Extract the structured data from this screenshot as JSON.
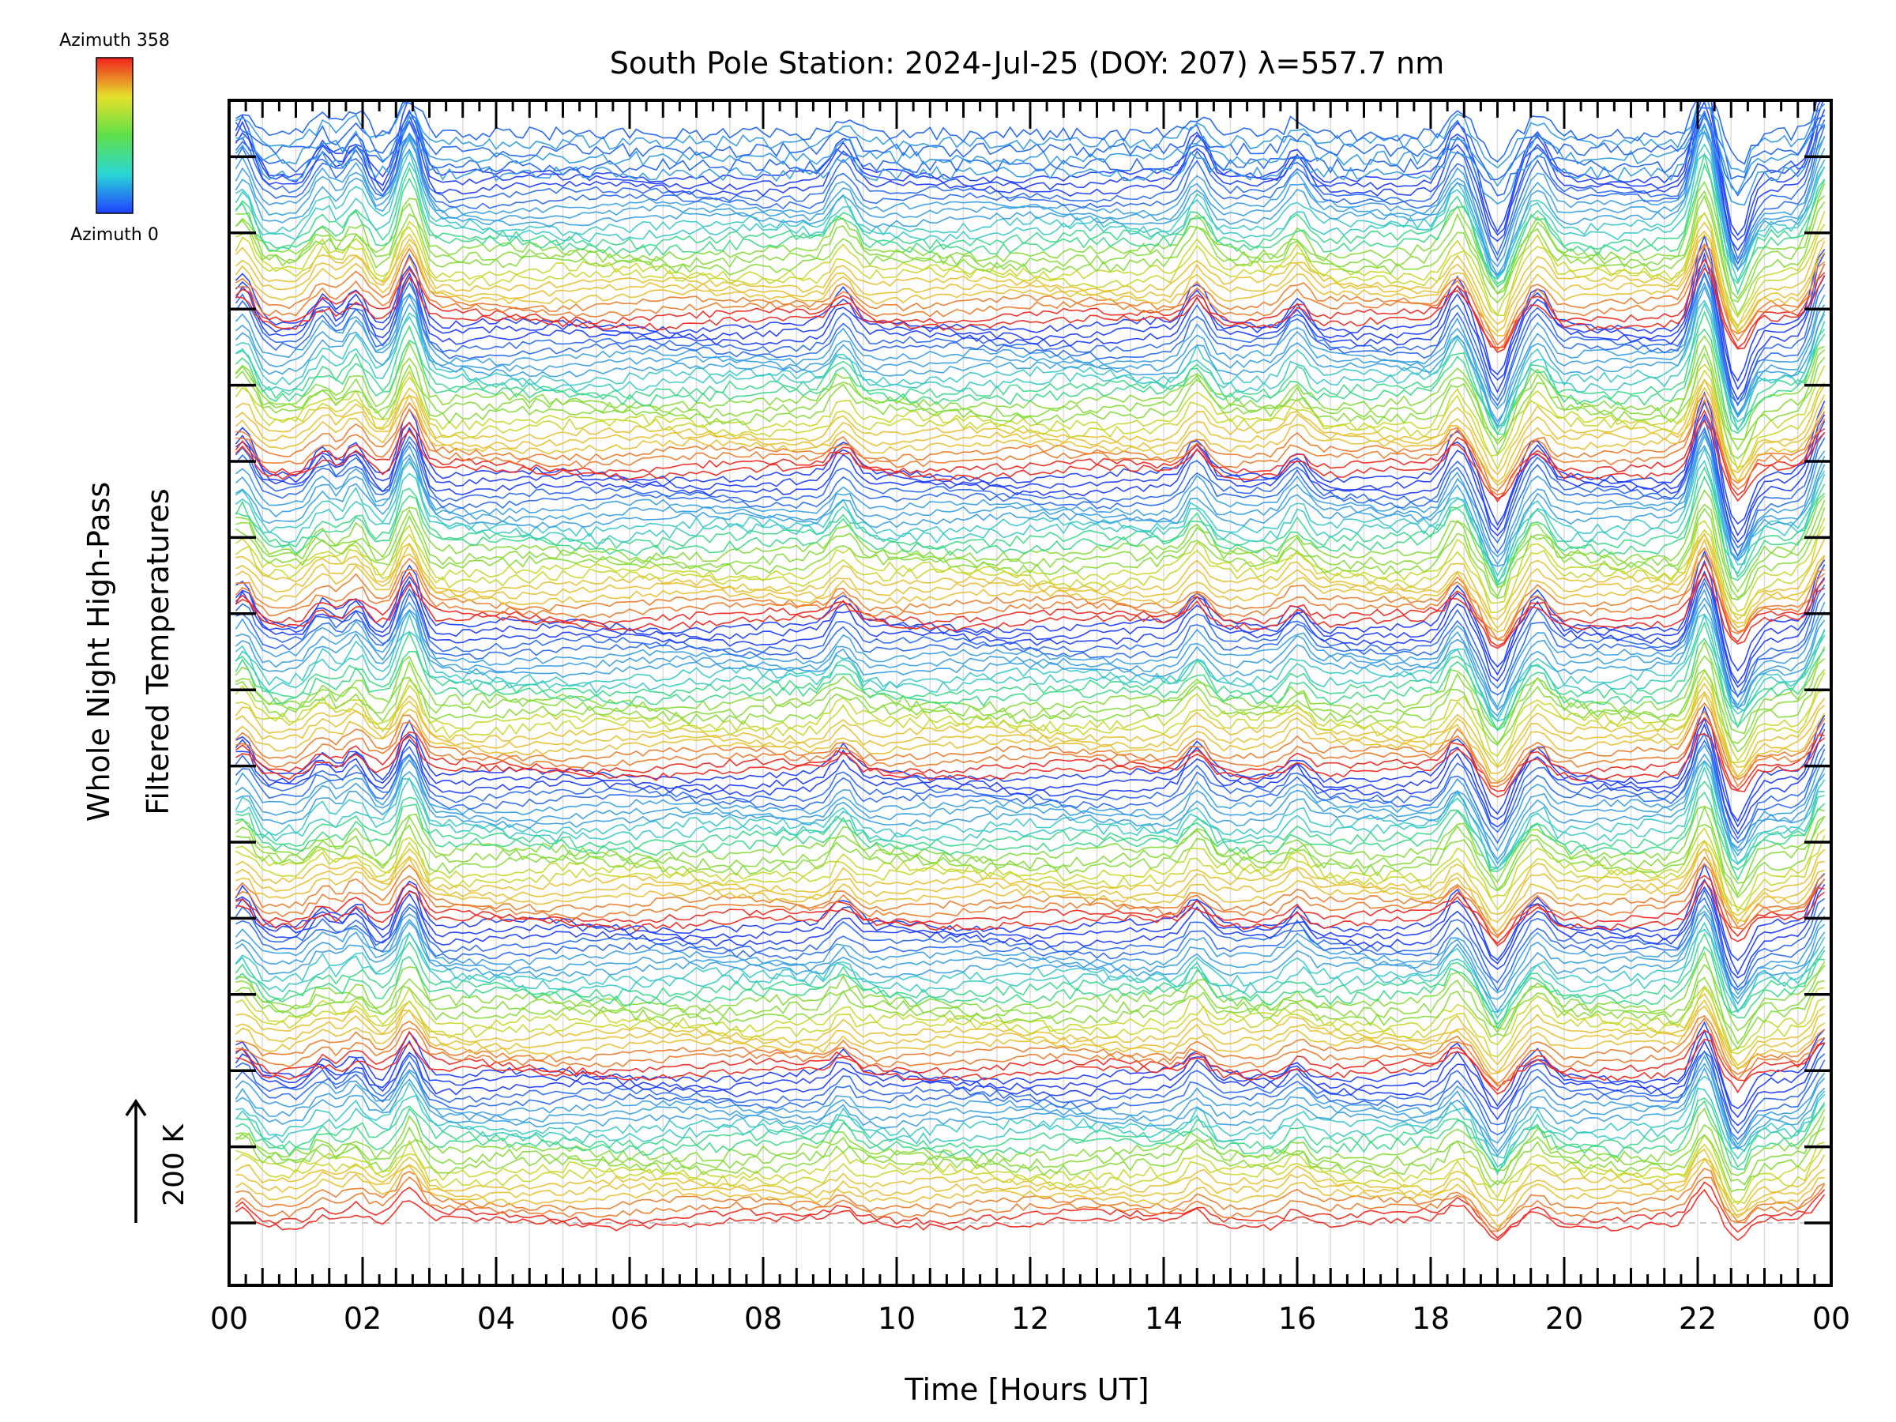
{
  "chart_data": {
    "type": "line",
    "title": "South Pole Station: 2024-Jul-25 (DOY: 207) λ=557.7 nm",
    "xlabel": "Time [Hours UT]",
    "ylabel_line1": "Whole Night High-Pass",
    "ylabel_line2": "Filtered Temperatures",
    "x_tick_labels": [
      "00",
      "02",
      "04",
      "06",
      "08",
      "10",
      "12",
      "14",
      "16",
      "18",
      "20",
      "22",
      "00"
    ],
    "xlim": [
      0,
      24
    ],
    "colorbar": {
      "max_label": "Azimuth 358",
      "min_label": "Azimuth 0",
      "colormap": "rainbow"
    },
    "scale_bar": {
      "label": "200 K"
    },
    "grid": true,
    "series_colors": [
      "#1f3fff",
      "#2a6cf2",
      "#3aa0e6",
      "#3cc9c9",
      "#3fd98a",
      "#86dc3a",
      "#c8d82e",
      "#e8c030",
      "#ef7b2a",
      "#f02a20"
    ],
    "stack_groups": 7,
    "lines_per_group": 24
  }
}
